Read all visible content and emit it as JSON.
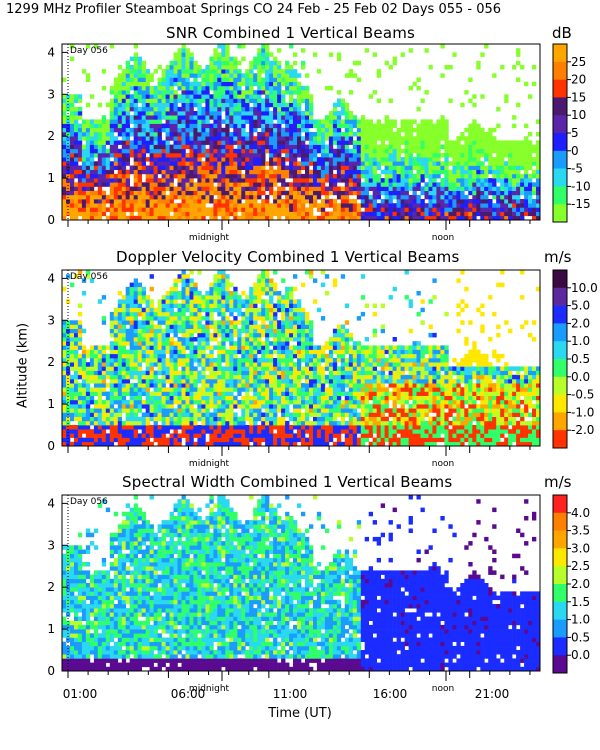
{
  "title": "1299 MHz Profiler  Steamboat Springs CO  24 Feb - 25 Feb 02 Days 055 - 056",
  "chart_data": [
    {
      "type": "heatmap",
      "title": "SNR Combined 1 Vertical Beams",
      "unit": "dB",
      "colorbar_ticks": [
        "25",
        "20",
        "15",
        "10",
        "5",
        "0",
        "-5",
        "-10",
        "-15"
      ],
      "colors": [
        "#ffa500",
        "#ff7f00",
        "#ff3300",
        "#4b1a6e",
        "#5a25a8",
        "#1e1eff",
        "#1a9cff",
        "#2ad8f0",
        "#30ff6a",
        "#86ff2a"
      ],
      "ylim": [
        0,
        4.2
      ],
      "yticks": [
        "0",
        "1",
        "2",
        "3",
        "4"
      ],
      "xlabels": [
        "midnight",
        "noon"
      ],
      "annotation": "Day 056"
    },
    {
      "type": "heatmap",
      "title": "Doppler Velocity Combined 1 Vertical Beams",
      "unit": "m/s",
      "colorbar_ticks": [
        "10.0",
        "5.0",
        "2.0",
        "1.0",
        "0.5",
        "0.0",
        "-0.5",
        "-1.0",
        "-2.0"
      ],
      "colors": [
        "#3b0a44",
        "#5a2a9e",
        "#1a2cff",
        "#1a9cff",
        "#2ad8f0",
        "#30ff6a",
        "#b8ff2a",
        "#ffe800",
        "#ffa500",
        "#ff3300"
      ],
      "ylim": [
        0,
        4.2
      ],
      "yticks": [
        "0",
        "1",
        "2",
        "3",
        "4"
      ],
      "xlabels": [
        "midnight",
        "noon"
      ],
      "annotation": "Day 056",
      "ylabel": "Altitude (km)"
    },
    {
      "type": "heatmap",
      "title": "Spectral Width Combined 1 Vertical Beams",
      "unit": "m/s",
      "colorbar_ticks": [
        "4.0",
        "3.5",
        "3.0",
        "2.5",
        "2.0",
        "1.5",
        "1.0",
        "0.5",
        "0.0"
      ],
      "colors": [
        "#ff2020",
        "#ff7f00",
        "#ffa500",
        "#ffe800",
        "#b8ff2a",
        "#30ff6a",
        "#2ad8f0",
        "#1a9cff",
        "#1a2cff",
        "#5a0a90"
      ],
      "ylim": [
        0,
        4.2
      ],
      "yticks": [
        "0",
        "1",
        "2",
        "3",
        "4"
      ],
      "xlabels": [
        "midnight",
        "noon"
      ],
      "xticks": [
        "01:00",
        "06:00",
        "11:00",
        "16:00",
        "21:00"
      ],
      "annotation": "Day 056",
      "xlabel": "Time (UT)"
    }
  ]
}
